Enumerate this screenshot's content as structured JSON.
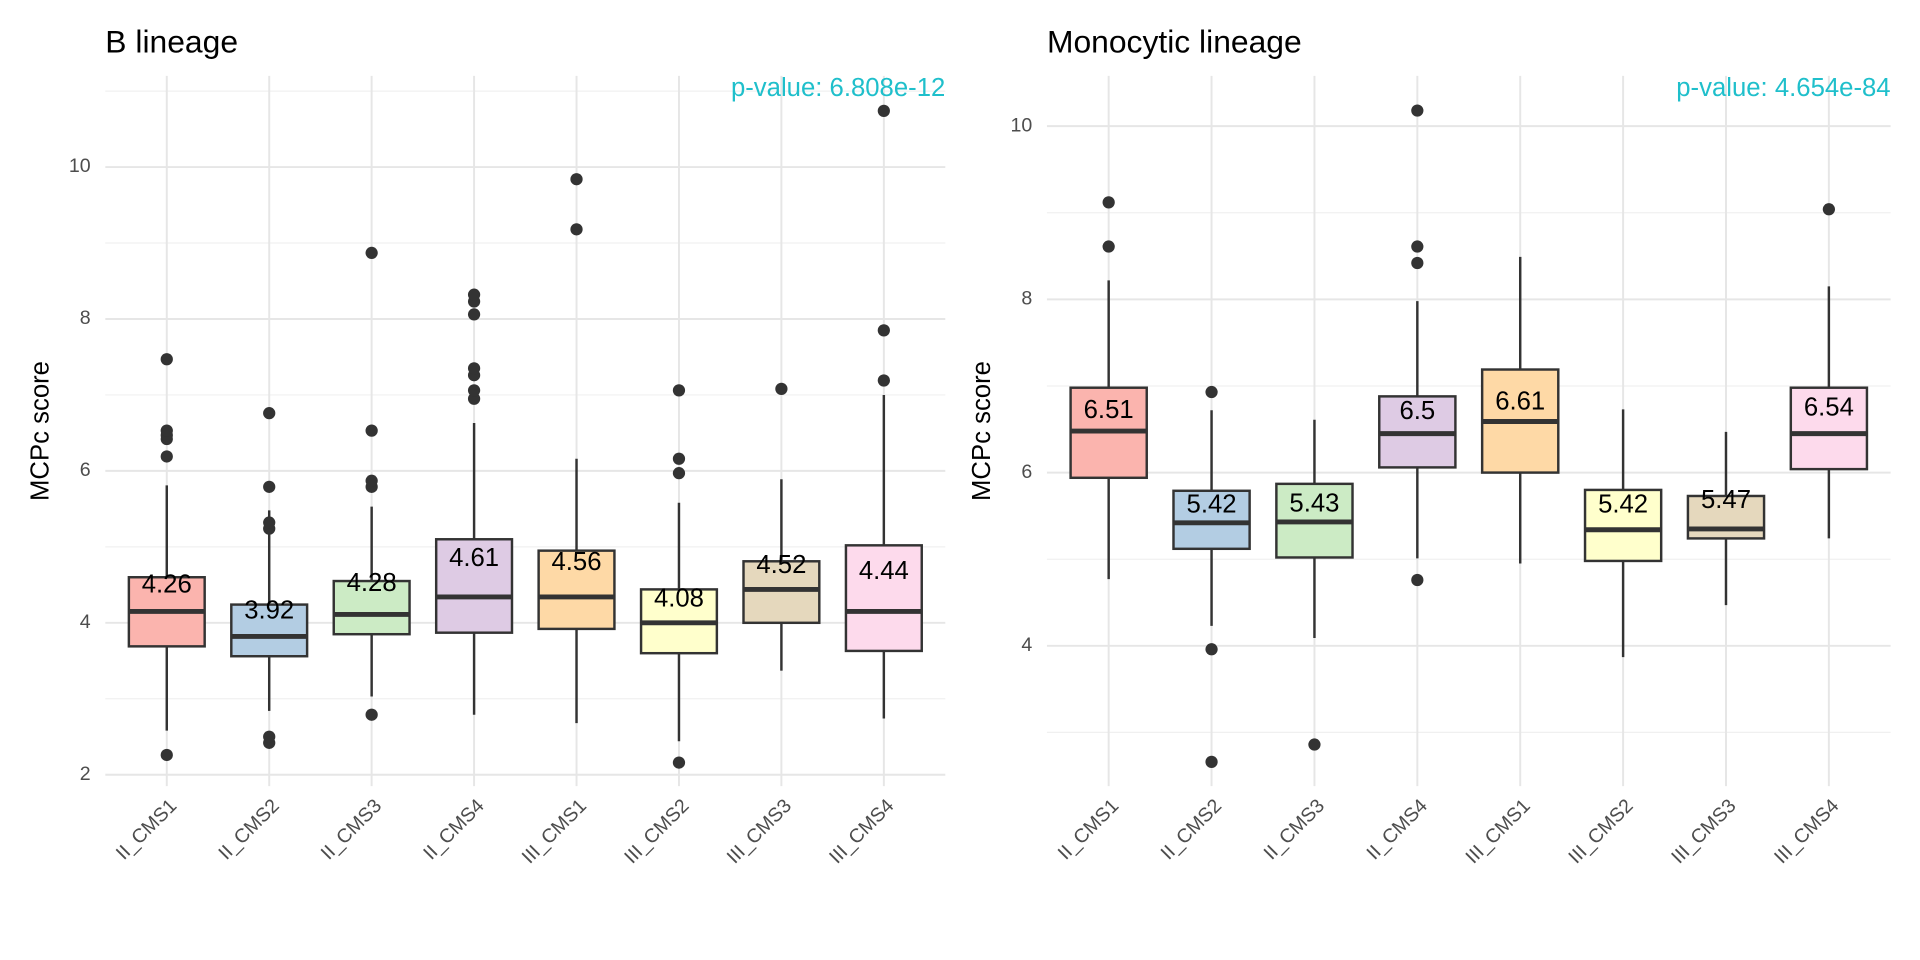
{
  "chart_data": [
    {
      "type": "box",
      "title": "B lineage",
      "annotation": "p-value: 6.808e-12",
      "y_label": "MCPc score",
      "categories": [
        "II_CMS1",
        "II_CMS2",
        "II_CMS3",
        "II_CMS4",
        "III_CMS1",
        "III_CMS2",
        "III_CMS3",
        "III_CMS4"
      ],
      "colors": [
        "#FBB4AE",
        "#B3CDE3",
        "#CCEBC5",
        "#DECBE4",
        "#FED9A6",
        "#FFFFCC",
        "#E5D8BD",
        "#FDDAEC"
      ],
      "ylim": [
        1.85,
        11.2
      ],
      "yticks": [
        2,
        4,
        6,
        8,
        10
      ],
      "minor_yticks": [
        3,
        5,
        7,
        9,
        11
      ],
      "grid": true,
      "boxes": [
        {
          "low": 2.58,
          "q1": 3.69,
          "median": 4.15,
          "q3": 4.6,
          "high": 5.81,
          "mean": 4.26,
          "outliers": [
            2.26,
            6.19,
            6.42,
            6.47,
            6.53,
            7.47
          ]
        },
        {
          "low": 2.84,
          "q1": 3.56,
          "median": 3.82,
          "q3": 4.24,
          "high": 5.48,
          "mean": 3.92,
          "outliers": [
            2.42,
            2.5,
            5.24,
            5.32,
            5.79,
            6.76
          ]
        },
        {
          "low": 3.03,
          "q1": 3.85,
          "median": 4.11,
          "q3": 4.55,
          "high": 5.53,
          "mean": 4.28,
          "outliers": [
            2.79,
            5.79,
            5.87,
            6.53,
            8.87
          ]
        },
        {
          "low": 2.79,
          "q1": 3.87,
          "median": 4.34,
          "q3": 5.1,
          "high": 6.63,
          "mean": 4.61,
          "outliers": [
            6.95,
            7.06,
            7.26,
            7.35,
            8.06,
            8.23,
            8.32
          ]
        },
        {
          "low": 2.68,
          "q1": 3.92,
          "median": 4.34,
          "q3": 4.95,
          "high": 6.16,
          "mean": 4.56,
          "outliers": [
            9.18,
            9.84
          ]
        },
        {
          "low": 2.44,
          "q1": 3.6,
          "median": 4.0,
          "q3": 4.44,
          "high": 5.58,
          "mean": 4.08,
          "outliers": [
            2.16,
            5.97,
            6.16,
            7.06
          ]
        },
        {
          "low": 3.37,
          "q1": 4.0,
          "median": 4.44,
          "q3": 4.81,
          "high": 5.89,
          "mean": 4.52,
          "outliers": [
            7.08
          ]
        },
        {
          "low": 2.74,
          "q1": 3.63,
          "median": 4.15,
          "q3": 5.02,
          "high": 7.0,
          "mean": 4.44,
          "outliers": [
            7.19,
            7.85,
            10.74
          ]
        }
      ]
    },
    {
      "type": "box",
      "title": "Monocytic lineage",
      "annotation": "p-value: 4.654e-84",
      "y_label": "MCPc score",
      "categories": [
        "II_CMS1",
        "II_CMS2",
        "II_CMS3",
        "II_CMS4",
        "III_CMS1",
        "III_CMS2",
        "III_CMS3",
        "III_CMS4"
      ],
      "colors": [
        "#FBB4AE",
        "#B3CDE3",
        "#CCEBC5",
        "#DECBE4",
        "#FED9A6",
        "#FFFFCC",
        "#E5D8BD",
        "#FDDAEC"
      ],
      "ylim": [
        2.38,
        10.58
      ],
      "yticks": [
        4,
        6,
        8,
        10
      ],
      "minor_yticks": [
        3,
        5,
        7,
        9
      ],
      "grid": true,
      "boxes": [
        {
          "low": 4.77,
          "q1": 5.94,
          "median": 6.48,
          "q3": 6.98,
          "high": 8.22,
          "mean": 6.51,
          "outliers": [
            8.61,
            9.12
          ]
        },
        {
          "low": 4.23,
          "q1": 5.12,
          "median": 5.42,
          "q3": 5.79,
          "high": 6.72,
          "mean": 5.42,
          "outliers": [
            2.66,
            3.96,
            6.93
          ]
        },
        {
          "low": 4.09,
          "q1": 5.02,
          "median": 5.43,
          "q3": 5.87,
          "high": 6.61,
          "mean": 5.43,
          "outliers": [
            2.86
          ]
        },
        {
          "low": 5.01,
          "q1": 6.06,
          "median": 6.45,
          "q3": 6.88,
          "high": 7.98,
          "mean": 6.5,
          "outliers": [
            4.76,
            8.42,
            8.61,
            10.18
          ]
        },
        {
          "low": 4.95,
          "q1": 6.0,
          "median": 6.59,
          "q3": 7.19,
          "high": 8.49,
          "mean": 6.61,
          "outliers": []
        },
        {
          "low": 3.87,
          "q1": 4.98,
          "median": 5.34,
          "q3": 5.8,
          "high": 6.73,
          "mean": 5.42,
          "outliers": []
        },
        {
          "low": 4.47,
          "q1": 5.24,
          "median": 5.35,
          "q3": 5.73,
          "high": 6.47,
          "mean": 5.47,
          "outliers": []
        },
        {
          "low": 5.24,
          "q1": 6.04,
          "median": 6.45,
          "q3": 6.98,
          "high": 8.15,
          "mean": 6.54,
          "outliers": [
            9.04
          ]
        }
      ]
    }
  ]
}
